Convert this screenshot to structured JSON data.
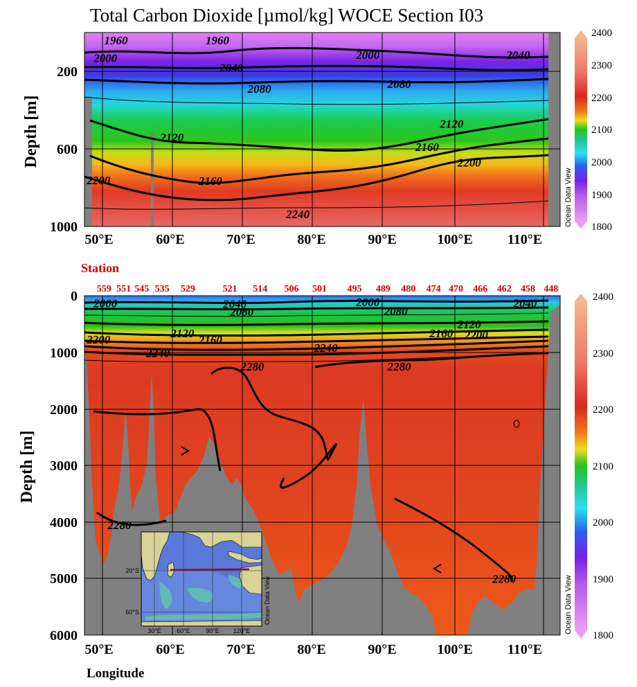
{
  "chart_data": [
    {
      "type": "heatmap",
      "title": "Total Carbon Dioxide [µmol/kg]  WOCE Section I03",
      "ylabel": "Depth [m]",
      "xlabel": "",
      "xlim": [
        47,
        115
      ],
      "ylim": [
        1000,
        0
      ],
      "xticks": [
        "50°E",
        "60°E",
        "70°E",
        "80°E",
        "90°E",
        "100°E",
        "110°E"
      ],
      "yticks": [
        "200",
        "600",
        "1000"
      ],
      "colorbar": {
        "range": [
          1800,
          2400
        ],
        "ticks": [
          "2400",
          "2300",
          "2200",
          "2100",
          "2000",
          "1900",
          "1800"
        ],
        "watermark": "Ocean Data View"
      },
      "contour_labels": [
        {
          "text": "1960",
          "lon": 51.5,
          "depth": 40
        },
        {
          "text": "1960",
          "lon": 66,
          "depth": 40
        },
        {
          "text": "2000",
          "lon": 50,
          "depth": 130
        },
        {
          "text": "2000",
          "lon": 87.5,
          "depth": 115
        },
        {
          "text": "2040",
          "lon": 68,
          "depth": 180
        },
        {
          "text": "2040",
          "lon": 109,
          "depth": 115
        },
        {
          "text": "2080",
          "lon": 72,
          "depth": 290
        },
        {
          "text": "2080",
          "lon": 92,
          "depth": 265
        },
        {
          "text": "2120",
          "lon": 59.5,
          "depth": 540
        },
        {
          "text": "2120",
          "lon": 99.5,
          "depth": 470
        },
        {
          "text": "2160",
          "lon": 65,
          "depth": 765
        },
        {
          "text": "2160",
          "lon": 96,
          "depth": 590
        },
        {
          "text": "2200",
          "lon": 49,
          "depth": 760
        },
        {
          "text": "2200",
          "lon": 102,
          "depth": 670
        },
        {
          "text": "2240",
          "lon": 77.5,
          "depth": 935
        }
      ]
    },
    {
      "type": "heatmap",
      "title": "",
      "ylabel": "Depth [m]",
      "xlabel": "Longitude",
      "xlim": [
        47,
        115
      ],
      "ylim": [
        6000,
        0
      ],
      "xticks": [
        "50°E",
        "60°E",
        "70°E",
        "80°E",
        "90°E",
        "100°E",
        "110°E"
      ],
      "yticks": [
        "0",
        "1000",
        "2000",
        "3000",
        "4000",
        "5000",
        "6000"
      ],
      "colorbar": {
        "range": [
          1800,
          2400
        ],
        "ticks": [
          "2400",
          "2300",
          "2200",
          "2100",
          "2000",
          "1900",
          "1800"
        ],
        "watermark": "Ocean Data View"
      },
      "station_title": "Station",
      "stations": [
        {
          "id": "559",
          "lon": 49.8
        },
        {
          "id": "551",
          "lon": 52.6
        },
        {
          "id": "545",
          "lon": 55.2
        },
        {
          "id": "535",
          "lon": 58.1
        },
        {
          "id": "529",
          "lon": 61.8
        },
        {
          "id": "521",
          "lon": 67.8
        },
        {
          "id": "514",
          "lon": 72.1
        },
        {
          "id": "506",
          "lon": 76.6
        },
        {
          "id": "501",
          "lon": 80.6
        },
        {
          "id": "495",
          "lon": 85.6
        },
        {
          "id": "489",
          "lon": 89.7
        },
        {
          "id": "480",
          "lon": 93.3
        },
        {
          "id": "474",
          "lon": 96.9
        },
        {
          "id": "470",
          "lon": 100.1
        },
        {
          "id": "466",
          "lon": 103.6
        },
        {
          "id": "462",
          "lon": 107.0
        },
        {
          "id": "458",
          "lon": 110.4
        },
        {
          "id": "448",
          "lon": 113.7
        }
      ],
      "contour_labels": [
        {
          "text": "2000",
          "lon": 50,
          "depth": 130
        },
        {
          "text": "2000",
          "lon": 87.5,
          "depth": 110
        },
        {
          "text": "2040",
          "lon": 68.5,
          "depth": 140
        },
        {
          "text": "2040",
          "lon": 110,
          "depth": 130
        },
        {
          "text": "2080",
          "lon": 69.5,
          "depth": 280
        },
        {
          "text": "2080",
          "lon": 91.5,
          "depth": 270
        },
        {
          "text": "2120",
          "lon": 61,
          "depth": 660
        },
        {
          "text": "2120",
          "lon": 102,
          "depth": 500
        },
        {
          "text": "2160",
          "lon": 65,
          "depth": 780
        },
        {
          "text": "2160",
          "lon": 98,
          "depth": 660
        },
        {
          "text": "2200",
          "lon": 49,
          "depth": 770
        },
        {
          "text": "2200",
          "lon": 103,
          "depth": 690
        },
        {
          "text": "2240",
          "lon": 57.5,
          "depth": 1010
        },
        {
          "text": "2240",
          "lon": 81.5,
          "depth": 920
        },
        {
          "text": "2280",
          "lon": 71,
          "depth": 1250
        },
        {
          "text": "2280",
          "lon": 92,
          "depth": 1250
        },
        {
          "text": "2280",
          "lon": 52,
          "depth": 4050
        },
        {
          "text": "2280",
          "lon": 107,
          "depth": 5000
        }
      ],
      "inset_map": {
        "lat_labels": [
          "20°S",
          "60°S"
        ],
        "lon_labels": [
          "30°E",
          "60°E",
          "90°E",
          "120°E"
        ],
        "watermark": "Ocean Data View"
      }
    }
  ]
}
